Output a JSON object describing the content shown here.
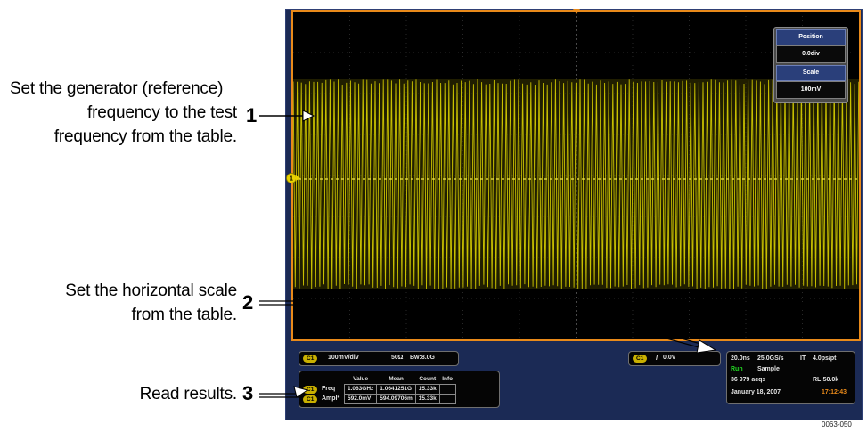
{
  "callouts": {
    "c1": {
      "lines": [
        "Set the generator (reference)",
        "frequency to the test",
        "frequency from the table."
      ],
      "number": "1"
    },
    "c2": {
      "lines": [
        "Set the horizontal scale",
        "from the table."
      ],
      "number": "2"
    },
    "c3": {
      "lines": [
        "Read results."
      ],
      "number": "3"
    }
  },
  "side_panel": {
    "position_label": "Position",
    "position_value": "0.0div",
    "scale_label": "Scale",
    "scale_value": "100mV"
  },
  "channel_readout": {
    "badge": "C1",
    "scale": "100mV/div",
    "impedance": "50Ω",
    "bandwidth": "Bw:8.0G"
  },
  "trigger_readout": {
    "badge": "C1",
    "slope": "/",
    "level": "0.0V"
  },
  "measurements": {
    "headers": [
      "",
      "Value",
      "Mean",
      "Count",
      "Info"
    ],
    "rows": [
      {
        "badge": "C1",
        "name": "Freq",
        "value": "1.063GHz",
        "mean": "1.0641251G",
        "count": "15.33k",
        "info": ""
      },
      {
        "badge": "C1",
        "name": "Ampl*",
        "value": "592.0mV",
        "mean": "594.09706m",
        "count": "15.33k",
        "info": ""
      }
    ]
  },
  "acq_panel": {
    "time_div": "20.0ns",
    "sample_rate": "25.0GS/s",
    "it": "IT",
    "pts": "4.0ps/pt",
    "run": "Run",
    "mode": "Sample",
    "acqs": "36 979 acqs",
    "record_length": "RL:50.0k",
    "date": "January 18, 2007",
    "time": "17:12:43"
  },
  "trigger_marker": "T",
  "channel_marker": "1",
  "figure_id": "0063-050",
  "colors": {
    "trace": "#c8c000",
    "border": "#e98a1a",
    "run": "#22d822",
    "time": "#e98a1a",
    "badge": "#c9b000"
  }
}
